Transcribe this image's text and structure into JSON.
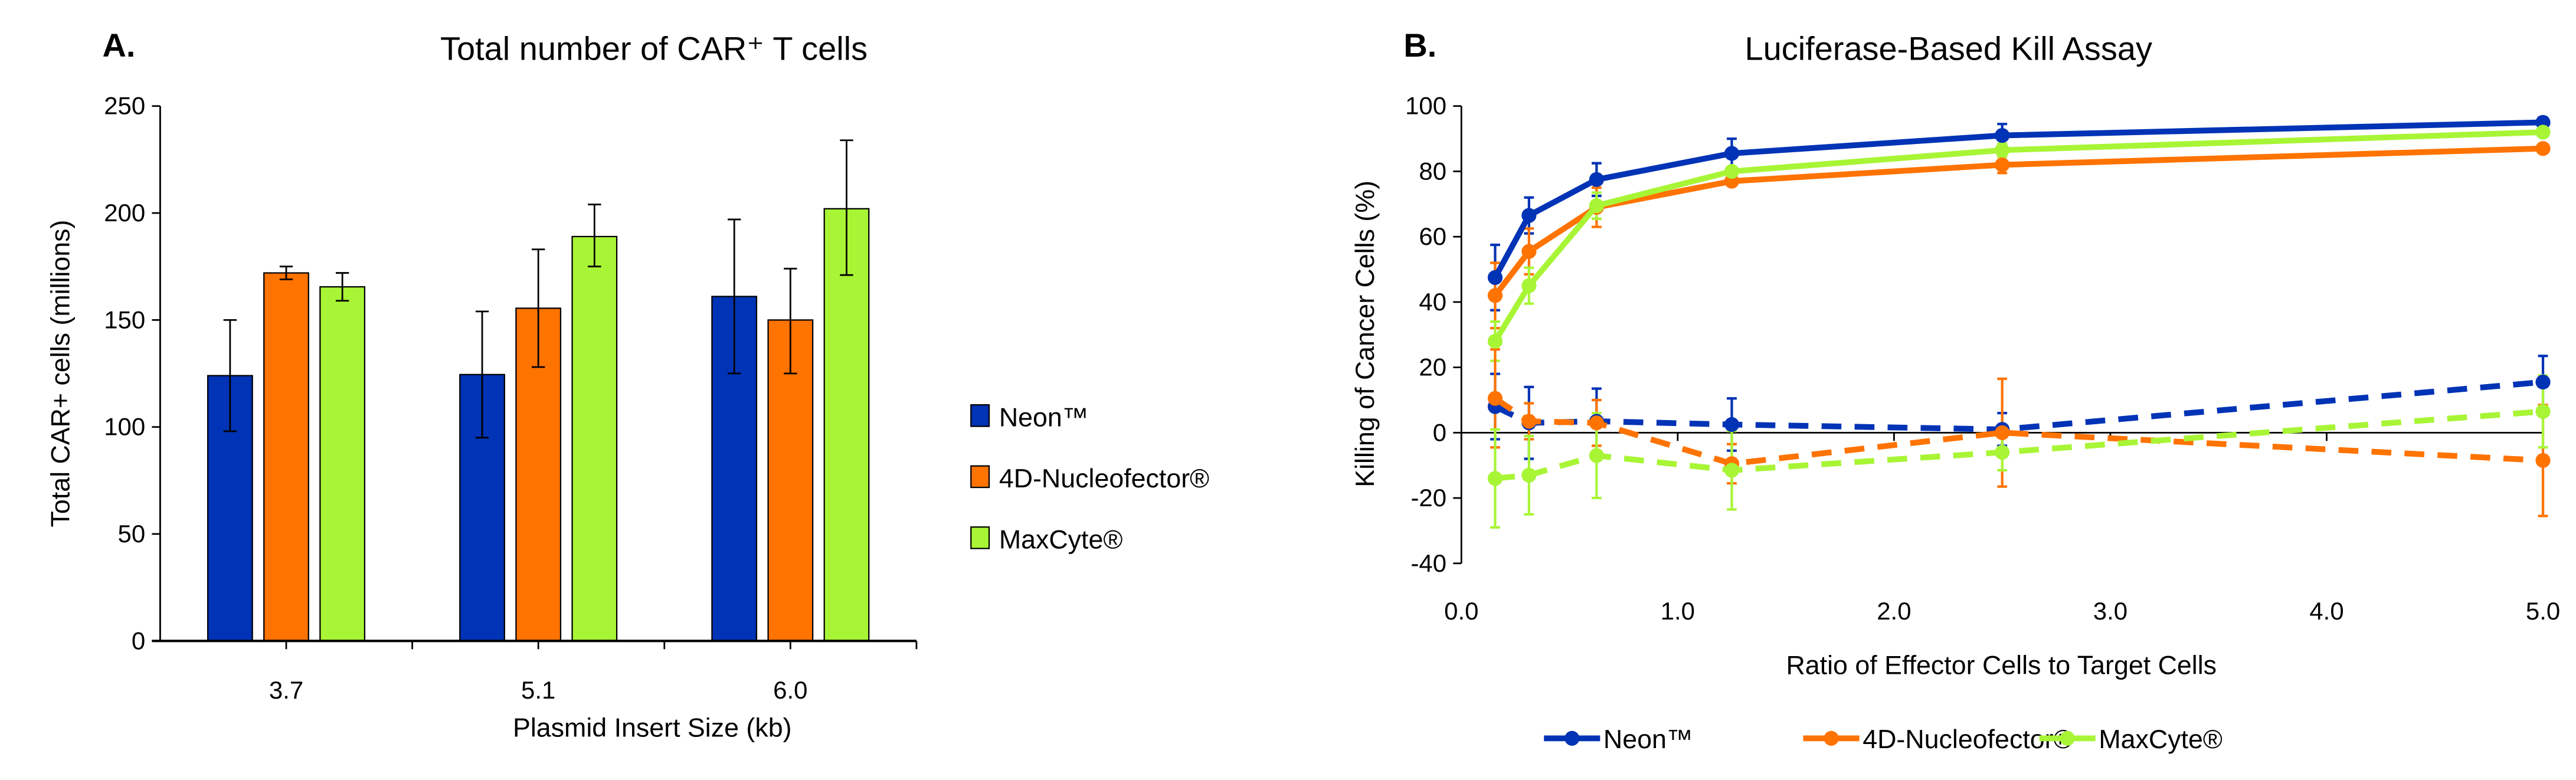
{
  "colors": {
    "neon": "#0033B5",
    "nucleofector": "#FF7300",
    "maxcyte": "#A8F536"
  },
  "chart_data": [
    {
      "panel_label": "A.",
      "type": "bar",
      "title": "Total number of CAR⁺ T cells",
      "xlabel": "Plasmid Insert Size (kb)",
      "ylabel": "Total CAR+ cells (millions)",
      "categories": [
        "3.7",
        "5.1",
        "6.0"
      ],
      "ylim": [
        0,
        250
      ],
      "yticks": [
        "0",
        "50",
        "100",
        "150",
        "200",
        "250"
      ],
      "legend_position": "right",
      "series": [
        {
          "name": "Neon™",
          "color": "#0033B5",
          "values": [
            124,
            124.5,
            161
          ],
          "err_low": [
            98,
            95,
            125
          ],
          "err_high": [
            150,
            154,
            197
          ]
        },
        {
          "name": "4D-Nucleofector®",
          "color": "#FF7300",
          "values": [
            172,
            155.5,
            150
          ],
          "err_low": [
            169,
            128,
            125
          ],
          "err_high": [
            175,
            183,
            174
          ]
        },
        {
          "name": "MaxCyte®",
          "color": "#A8F536",
          "values": [
            165.5,
            189,
            202
          ],
          "err_low": [
            159,
            175,
            171
          ],
          "err_high": [
            172,
            204,
            234
          ]
        }
      ]
    },
    {
      "panel_label": "B.",
      "type": "line",
      "title": "Luciferase-Based Kill Assay",
      "xlabel": "Ratio of Effector Cells to Target Cells",
      "ylabel": "Killing of Cancer Cells (%)",
      "xlim": [
        0,
        5
      ],
      "ylim": [
        -40,
        100
      ],
      "xticks": [
        "0.0",
        "1.0",
        "2.0",
        "3.0",
        "4.0",
        "5.0"
      ],
      "yticks": [
        "-40",
        "-20",
        "0",
        "20",
        "40",
        "60",
        "80",
        "100"
      ],
      "legend_position": "bottom",
      "x": [
        0.156,
        0.3125,
        0.625,
        1.25,
        2.5,
        5.0
      ],
      "series": [
        {
          "name": "Neon™",
          "color": "#0033B5",
          "style": "solid",
          "values": [
            47.5,
            66.5,
            77.5,
            85.5,
            91,
            95
          ],
          "err": [
            10,
            5.5,
            5,
            4.5,
            3.5,
            1.5
          ]
        },
        {
          "name": "4D-Nucleofector®",
          "color": "#FF7300",
          "style": "solid",
          "values": [
            42,
            55.5,
            69,
            77,
            82,
            87
          ],
          "err": [
            10,
            7,
            6,
            1,
            2.5,
            1
          ]
        },
        {
          "name": "MaxCyte®",
          "color": "#A8F536",
          "style": "solid",
          "values": [
            28,
            45,
            69.5,
            80,
            86.5,
            92
          ],
          "err": [
            6,
            5.5,
            4,
            1,
            2,
            1
          ]
        },
        {
          "color": "#0033B5",
          "style": "dashed",
          "values": [
            8,
            3,
            3.5,
            2.5,
            1,
            15.5
          ],
          "err": [
            10,
            11,
            10,
            8,
            5,
            8
          ]
        },
        {
          "color": "#FF7300",
          "style": "dashed",
          "values": [
            10.5,
            3.5,
            3,
            -9.5,
            0,
            -8.5
          ],
          "err": [
            15,
            5.5,
            7,
            6,
            16.5,
            17
          ]
        },
        {
          "color": "#A8F536",
          "style": "dashed",
          "values": [
            -14,
            -13,
            -7,
            -11.5,
            -6,
            6.5
          ],
          "err": [
            15,
            12,
            13,
            12,
            5.5,
            11
          ]
        }
      ]
    }
  ]
}
